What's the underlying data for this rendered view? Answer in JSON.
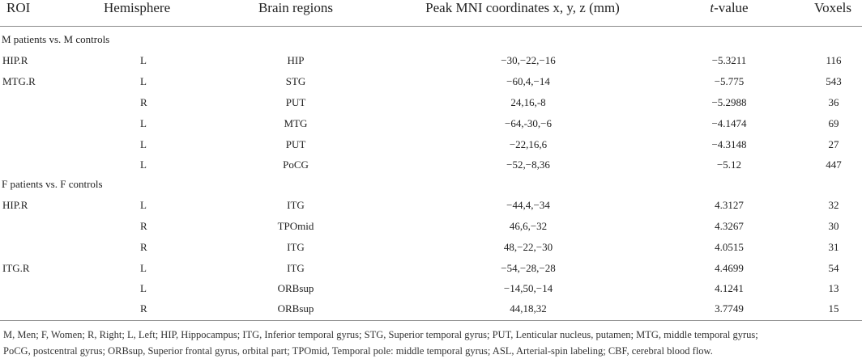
{
  "table": {
    "headers": {
      "roi": "ROI",
      "hemisphere": "Hemisphere",
      "regions": "Brain regions",
      "coords": "Peak MNI coordinates x, y, z (mm)",
      "t_value_italic": "t",
      "t_value_rest": "-value",
      "voxels": "Voxels"
    },
    "groups": [
      {
        "title": "M patients vs. M controls",
        "rows": [
          {
            "roi": "HIP.R",
            "hemi": "L",
            "region": "HIP",
            "coords": "−30,−22,−16",
            "t": "−5.3211",
            "voxels": "116"
          },
          {
            "roi": "MTG.R",
            "hemi": "L",
            "region": "STG",
            "coords": "−60,4,−14",
            "t": "−5.775",
            "voxels": "543"
          },
          {
            "roi": "",
            "hemi": "R",
            "region": "PUT",
            "coords": "24,16,-8",
            "t": "−5.2988",
            "voxels": "36"
          },
          {
            "roi": "",
            "hemi": "L",
            "region": "MTG",
            "coords": "−64,-30,−6",
            "t": "−4.1474",
            "voxels": "69"
          },
          {
            "roi": "",
            "hemi": "L",
            "region": "PUT",
            "coords": "−22,16,6",
            "t": "−4.3148",
            "voxels": "27"
          },
          {
            "roi": "",
            "hemi": "L",
            "region": "PoCG",
            "coords": "−52,−8,36",
            "t": "−5.12",
            "voxels": "447"
          }
        ]
      },
      {
        "title": "F patients vs. F controls",
        "rows": [
          {
            "roi": "HIP.R",
            "hemi": "L",
            "region": "ITG",
            "coords": "−44,4,−34",
            "t": "4.3127",
            "voxels": "32"
          },
          {
            "roi": "",
            "hemi": "R",
            "region": "TPOmid",
            "coords": "46,6,−32",
            "t": "4.3267",
            "voxels": "30"
          },
          {
            "roi": "",
            "hemi": "R",
            "region": "ITG",
            "coords": "48,−22,−30",
            "t": "4.0515",
            "voxels": "31"
          },
          {
            "roi": "ITG.R",
            "hemi": "L",
            "region": "ITG",
            "coords": "−54,−28,−28",
            "t": "4.4699",
            "voxels": "54"
          },
          {
            "roi": "",
            "hemi": "L",
            "region": "ORBsup",
            "coords": "−14,50,−14",
            "t": "4.1241",
            "voxels": "13"
          },
          {
            "roi": "",
            "hemi": "R",
            "region": "ORBsup",
            "coords": "44,18,32",
            "t": "3.7749",
            "voxels": "15"
          }
        ]
      }
    ]
  },
  "footnote": {
    "line1": "M, Men; F, Women; R, Right; L, Left; HIP, Hippocampus; ITG, Inferior temporal gyrus; STG, Superior temporal gyrus; PUT, Lenticular nucleus, putamen; MTG, middle temporal gyrus;",
    "line2": "PoCG, postcentral gyrus; ORBsup, Superior frontal gyrus, orbital part; TPOmid, Temporal pole: middle temporal gyrus; ASL, Arterial-spin labeling; CBF, cerebral blood flow."
  }
}
